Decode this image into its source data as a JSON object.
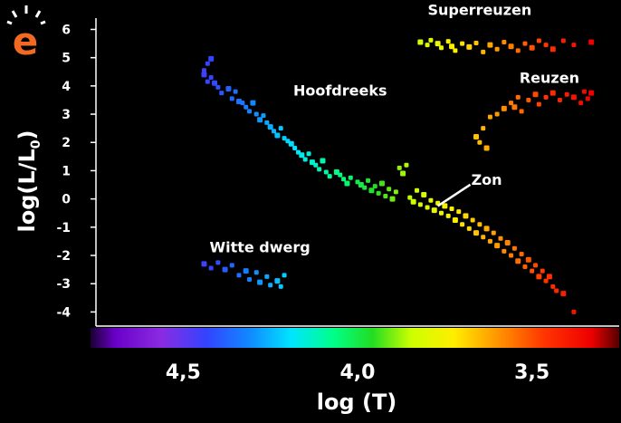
{
  "logo": {
    "letter": "e",
    "color": "#f26a21"
  },
  "chart_data": {
    "type": "scatter",
    "title": "",
    "xlabel": "log (T)",
    "ylabel": "log(L/L",
    "ylabel_subscript": "0",
    "ylabel_close": ")",
    "xlim": [
      4.75,
      3.25
    ],
    "ylim": [
      -4.5,
      6.4
    ],
    "x_inverted": true,
    "grid": false,
    "x_ticks": [
      {
        "value": 4.5,
        "label": "4,5"
      },
      {
        "value": 4.0,
        "label": "4,0"
      },
      {
        "value": 3.5,
        "label": "3,5"
      }
    ],
    "y_ticks": [
      {
        "value": 6,
        "label": "6"
      },
      {
        "value": 5,
        "label": "5"
      },
      {
        "value": 4,
        "label": "4"
      },
      {
        "value": 3,
        "label": "3"
      },
      {
        "value": 2,
        "label": "2"
      },
      {
        "value": 1,
        "label": "1"
      },
      {
        "value": 0,
        "label": "0"
      },
      {
        "value": -1,
        "label": "-1"
      },
      {
        "value": -2,
        "label": "-2"
      },
      {
        "value": -3,
        "label": "-3"
      },
      {
        "value": -4,
        "label": "-4"
      }
    ],
    "colorbar": {
      "range": [
        4.75,
        3.25
      ],
      "stops": [
        {
          "value": 4.75,
          "color": "#1a0033"
        },
        {
          "value": 4.68,
          "color": "#6a00c8"
        },
        {
          "value": 4.55,
          "color": "#8a2be2"
        },
        {
          "value": 4.42,
          "color": "#3344ff"
        },
        {
          "value": 4.3,
          "color": "#1188ff"
        },
        {
          "value": 4.18,
          "color": "#00e5ff"
        },
        {
          "value": 4.06,
          "color": "#00ff88"
        },
        {
          "value": 3.95,
          "color": "#22dd22"
        },
        {
          "value": 3.84,
          "color": "#ccff00"
        },
        {
          "value": 3.72,
          "color": "#ffee00"
        },
        {
          "value": 3.6,
          "color": "#ff9900"
        },
        {
          "value": 3.46,
          "color": "#ff3300"
        },
        {
          "value": 3.33,
          "color": "#ee0000"
        },
        {
          "value": 3.25,
          "color": "#550000"
        }
      ]
    },
    "series": [
      {
        "name": "Hoofdreeks",
        "points": [
          [
            4.42,
            4.96
          ],
          [
            4.43,
            4.79
          ],
          [
            4.44,
            4.55
          ],
          [
            4.44,
            4.4
          ],
          [
            4.42,
            4.3
          ],
          [
            4.43,
            4.15
          ],
          [
            4.41,
            4.1
          ],
          [
            4.4,
            3.95
          ],
          [
            4.39,
            3.75
          ],
          [
            4.37,
            3.9
          ],
          [
            4.35,
            3.8
          ],
          [
            4.36,
            3.55
          ],
          [
            4.34,
            3.45
          ],
          [
            4.33,
            3.4
          ],
          [
            4.32,
            3.25
          ],
          [
            4.3,
            3.4
          ],
          [
            4.31,
            3.1
          ],
          [
            4.29,
            3.0
          ],
          [
            4.28,
            2.8
          ],
          [
            4.27,
            2.95
          ],
          [
            4.26,
            2.7
          ],
          [
            4.25,
            2.55
          ],
          [
            4.24,
            2.4
          ],
          [
            4.22,
            2.5
          ],
          [
            4.23,
            2.25
          ],
          [
            4.21,
            2.15
          ],
          [
            4.2,
            2.05
          ],
          [
            4.19,
            1.95
          ],
          [
            4.18,
            1.8
          ],
          [
            4.17,
            1.65
          ],
          [
            4.16,
            1.55
          ],
          [
            4.14,
            1.6
          ],
          [
            4.15,
            1.4
          ],
          [
            4.13,
            1.3
          ],
          [
            4.12,
            1.2
          ],
          [
            4.11,
            1.05
          ],
          [
            4.1,
            1.35
          ],
          [
            4.09,
            0.95
          ],
          [
            4.08,
            0.8
          ],
          [
            4.06,
            0.95
          ],
          [
            4.05,
            0.85
          ],
          [
            4.04,
            0.7
          ],
          [
            4.03,
            0.55
          ],
          [
            4.02,
            0.75
          ],
          [
            4.0,
            0.6
          ],
          [
            3.99,
            0.5
          ],
          [
            3.98,
            0.4
          ],
          [
            3.97,
            0.65
          ],
          [
            3.96,
            0.3
          ],
          [
            3.95,
            0.45
          ],
          [
            3.94,
            0.2
          ],
          [
            3.93,
            0.55
          ],
          [
            3.92,
            0.1
          ],
          [
            3.91,
            0.35
          ],
          [
            3.9,
            0.0
          ],
          [
            3.89,
            0.25
          ],
          [
            3.88,
            1.1
          ],
          [
            3.87,
            0.9
          ],
          [
            3.86,
            1.2
          ],
          [
            3.85,
            0.05
          ],
          [
            3.84,
            -0.1
          ],
          [
            3.83,
            0.3
          ],
          [
            3.82,
            -0.2
          ],
          [
            3.81,
            0.15
          ],
          [
            3.8,
            -0.3
          ],
          [
            3.79,
            -0.05
          ],
          [
            3.78,
            -0.4
          ],
          [
            3.77,
            -0.15
          ],
          [
            3.76,
            -0.5
          ],
          [
            3.75,
            -0.25
          ],
          [
            3.74,
            -0.6
          ],
          [
            3.73,
            -0.35
          ],
          [
            3.72,
            -0.75
          ],
          [
            3.71,
            -0.45
          ],
          [
            3.7,
            -0.9
          ],
          [
            3.69,
            -0.6
          ],
          [
            3.68,
            -1.05
          ],
          [
            3.67,
            -0.75
          ],
          [
            3.66,
            -1.2
          ],
          [
            3.65,
            -0.9
          ],
          [
            3.64,
            -1.35
          ],
          [
            3.63,
            -1.05
          ],
          [
            3.62,
            -1.5
          ],
          [
            3.61,
            -1.2
          ],
          [
            3.6,
            -1.65
          ],
          [
            3.59,
            -1.4
          ],
          [
            3.58,
            -1.85
          ],
          [
            3.57,
            -1.55
          ],
          [
            3.56,
            -2.0
          ],
          [
            3.55,
            -1.75
          ],
          [
            3.54,
            -2.2
          ],
          [
            3.53,
            -1.95
          ],
          [
            3.52,
            -2.4
          ],
          [
            3.51,
            -2.15
          ],
          [
            3.5,
            -2.55
          ],
          [
            3.49,
            -2.35
          ],
          [
            3.48,
            -2.75
          ],
          [
            3.47,
            -2.55
          ],
          [
            3.46,
            -2.9
          ],
          [
            3.45,
            -2.75
          ],
          [
            3.44,
            -3.1
          ],
          [
            3.43,
            -3.25
          ],
          [
            3.41,
            -3.35
          ],
          [
            3.38,
            -4.0
          ]
        ]
      },
      {
        "name": "Superreuzen",
        "points": [
          [
            3.82,
            5.55
          ],
          [
            3.8,
            5.45
          ],
          [
            3.79,
            5.62
          ],
          [
            3.77,
            5.5
          ],
          [
            3.76,
            5.35
          ],
          [
            3.74,
            5.58
          ],
          [
            3.73,
            5.4
          ],
          [
            3.72,
            5.25
          ],
          [
            3.7,
            5.5
          ],
          [
            3.68,
            5.38
          ],
          [
            3.66,
            5.52
          ],
          [
            3.64,
            5.2
          ],
          [
            3.62,
            5.45
          ],
          [
            3.6,
            5.3
          ],
          [
            3.58,
            5.55
          ],
          [
            3.56,
            5.4
          ],
          [
            3.54,
            5.25
          ],
          [
            3.52,
            5.5
          ],
          [
            3.5,
            5.35
          ],
          [
            3.48,
            5.6
          ],
          [
            3.46,
            5.45
          ],
          [
            3.44,
            5.3
          ],
          [
            3.41,
            5.6
          ],
          [
            3.38,
            5.45
          ],
          [
            3.33,
            5.55
          ]
        ]
      },
      {
        "name": "Reuzen",
        "points": [
          [
            3.66,
            2.2
          ],
          [
            3.64,
            2.5
          ],
          [
            3.65,
            2.0
          ],
          [
            3.63,
            1.8
          ],
          [
            3.62,
            2.9
          ],
          [
            3.6,
            3.0
          ],
          [
            3.58,
            3.2
          ],
          [
            3.56,
            3.4
          ],
          [
            3.54,
            3.6
          ],
          [
            3.55,
            3.25
          ],
          [
            3.53,
            3.1
          ],
          [
            3.51,
            3.5
          ],
          [
            3.49,
            3.7
          ],
          [
            3.48,
            3.35
          ],
          [
            3.46,
            3.6
          ],
          [
            3.44,
            3.75
          ],
          [
            3.42,
            3.5
          ],
          [
            3.4,
            3.7
          ],
          [
            3.38,
            3.6
          ],
          [
            3.36,
            3.4
          ],
          [
            3.34,
            3.55
          ],
          [
            3.33,
            3.75
          ],
          [
            3.35,
            3.8
          ]
        ]
      },
      {
        "name": "Witte dwerg",
        "points": [
          [
            4.44,
            -2.3
          ],
          [
            4.42,
            -2.45
          ],
          [
            4.4,
            -2.25
          ],
          [
            4.38,
            -2.5
          ],
          [
            4.36,
            -2.35
          ],
          [
            4.34,
            -2.7
          ],
          [
            4.32,
            -2.55
          ],
          [
            4.31,
            -2.85
          ],
          [
            4.29,
            -2.6
          ],
          [
            4.28,
            -2.95
          ],
          [
            4.26,
            -2.75
          ],
          [
            4.25,
            -3.05
          ],
          [
            4.23,
            -2.9
          ],
          [
            4.22,
            -3.1
          ],
          [
            4.21,
            -2.7
          ]
        ]
      }
    ],
    "annotations": [
      {
        "text": "Superreuzen",
        "x": 3.65,
        "y": 6.7
      },
      {
        "text": "Reuzen",
        "x": 3.45,
        "y": 4.3
      },
      {
        "text": "Hoofdreeks",
        "x": 4.05,
        "y": 3.85
      },
      {
        "text": "Zon",
        "x": 3.63,
        "y": 0.7,
        "arrow_to": [
          3.77,
          -0.25
        ]
      },
      {
        "text": "Witte dwerg",
        "x": 4.28,
        "y": -1.7
      }
    ]
  }
}
